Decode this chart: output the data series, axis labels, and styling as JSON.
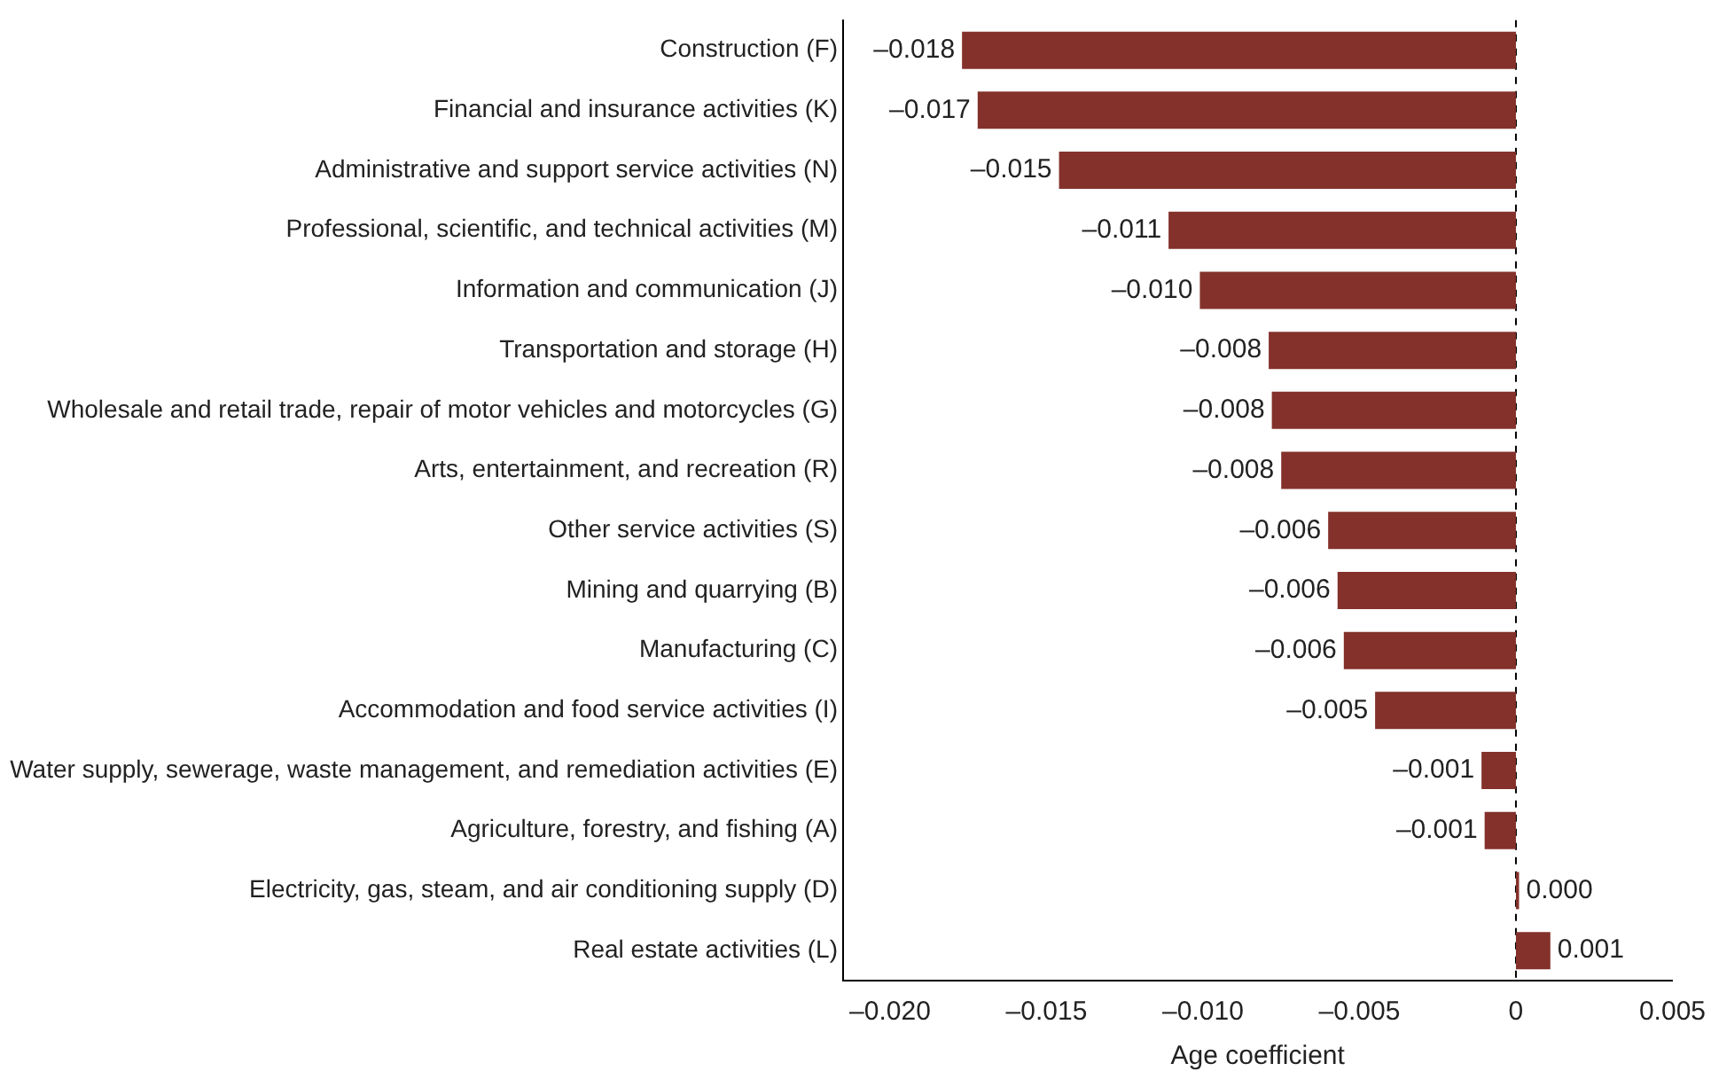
{
  "chart_data": {
    "type": "bar",
    "orientation": "horizontal",
    "xlabel": "Age coefficient",
    "categories": [
      "Construction (F)",
      "Financial and insurance activities (K)",
      "Administrative and support service activities (N)",
      "Professional, scientific, and technical activities (M)",
      "Information and communication (J)",
      "Transportation and storage (H)",
      "Wholesale and retail trade, repair of motor vehicles and motorcycles (G)",
      "Arts, entertainment, and recreation (R)",
      "Other service activities (S)",
      "Mining and quarrying (B)",
      "Manufacturing (C)",
      "Accommodation and food service activities (I)",
      "Water supply, sewerage, waste management, and remediation activities (E)",
      "Agriculture, forestry, and fishing (A)",
      "Electricity, gas, steam, and air conditioning supply (D)",
      "Real estate activities (L)"
    ],
    "values": [
      -0.0177,
      -0.0172,
      -0.0146,
      -0.0111,
      -0.0101,
      -0.0079,
      -0.0078,
      -0.0075,
      -0.006,
      -0.0057,
      -0.0055,
      -0.0045,
      -0.0011,
      -0.001,
      0.0001,
      0.0011
    ],
    "value_labels": [
      "–0.018",
      "–0.017",
      "–0.015",
      "–0.011",
      "–0.010",
      "–0.008",
      "–0.008",
      "–0.008",
      "–0.006",
      "–0.006",
      "–0.006",
      "–0.005",
      "–0.001",
      "–0.001",
      "0.000",
      "0.001"
    ],
    "color": "#84312b",
    "xlim": [
      -0.0215,
      0.005
    ],
    "xticks": [
      {
        "value": -0.02,
        "label": "–0.020"
      },
      {
        "value": -0.015,
        "label": "–0.015"
      },
      {
        "value": -0.01,
        "label": "–0.010"
      },
      {
        "value": -0.005,
        "label": "–0.005"
      },
      0,
      0.005
    ],
    "ref_lines": [
      {
        "axis": "x",
        "value": 0,
        "color": "#000000",
        "line_style": "dashed"
      }
    ],
    "grid": false,
    "legend": false
  }
}
